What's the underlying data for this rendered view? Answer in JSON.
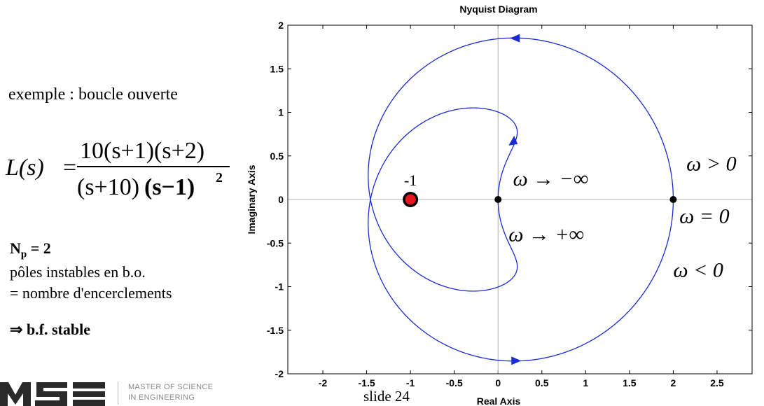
{
  "slide": {
    "intro": "exemple : boucle ouverte",
    "formula": {
      "lhs": "L(s)",
      "equals": "=",
      "numerator": "10(s+1)(s+2)",
      "denominator_left": "(s+10)",
      "denominator_right": "(s−1)",
      "exponent": "2"
    },
    "np_main": "N",
    "np_sub": "p",
    "np_value": " = 2",
    "poles_line1": "pôles instables en b.o.",
    "poles_line2": "= nombre d'encerclements",
    "conclusion_arrow": "⇒",
    "conclusion_text": " b.f. stable",
    "slide_number": "slide 24",
    "logo_lines": [
      "MASTER OF SCIENCE",
      "IN ENGINEERING"
    ]
  },
  "chart_data": {
    "type": "line",
    "title": "Nyquist Diagram",
    "xlabel": "Real Axis",
    "ylabel": "Imaginary Axis",
    "xlim": [
      -2.4,
      2.9
    ],
    "ylim": [
      -2,
      2
    ],
    "x_ticks": [
      -2,
      -1.5,
      -1,
      -0.5,
      0,
      0.5,
      1,
      1.5,
      2,
      2.5
    ],
    "x_tick_labels": [
      "-2",
      "-1.5",
      "-1",
      "-0.5",
      "0",
      "0.5",
      "1",
      "1.5",
      "2",
      "2.5"
    ],
    "y_ticks": [
      2,
      1.5,
      1,
      0.5,
      0,
      -0.5,
      -1,
      -1.5,
      -2
    ],
    "y_tick_labels": [
      "2",
      "1.5",
      "1",
      "0.5",
      "0",
      "-0.5",
      "-1",
      "-1.5",
      "-2"
    ],
    "grid": false,
    "transfer_function": "10(s+1)(s+2) / ((s+10)(s-1)^2)",
    "curve_color": "#1a2bd6",
    "critical_point": {
      "x": -1,
      "y": 0,
      "label": "-1",
      "color": "#e8141e"
    },
    "markers": [
      {
        "x": 0,
        "y": 0
      },
      {
        "x": 2,
        "y": 0
      }
    ],
    "arrows": [
      {
        "x": 0.2,
        "y": 1.85,
        "direction": "left"
      },
      {
        "x": 0.2,
        "y": -1.85,
        "direction": "right"
      },
      {
        "x": 0.16,
        "y": 0.66,
        "direction": "up"
      }
    ],
    "annotations": [
      {
        "text": "ω → −∞",
        "x": 0.17,
        "y": 0.25
      },
      {
        "text": "ω → +∞",
        "x": 0.12,
        "y": -0.39
      },
      {
        "text": "ω > 0",
        "x": 2.15,
        "y": 0.42
      },
      {
        "text": "ω = 0",
        "x": 2.07,
        "y": -0.18
      },
      {
        "text": "ω < 0",
        "x": 2.0,
        "y": -0.8
      }
    ]
  }
}
